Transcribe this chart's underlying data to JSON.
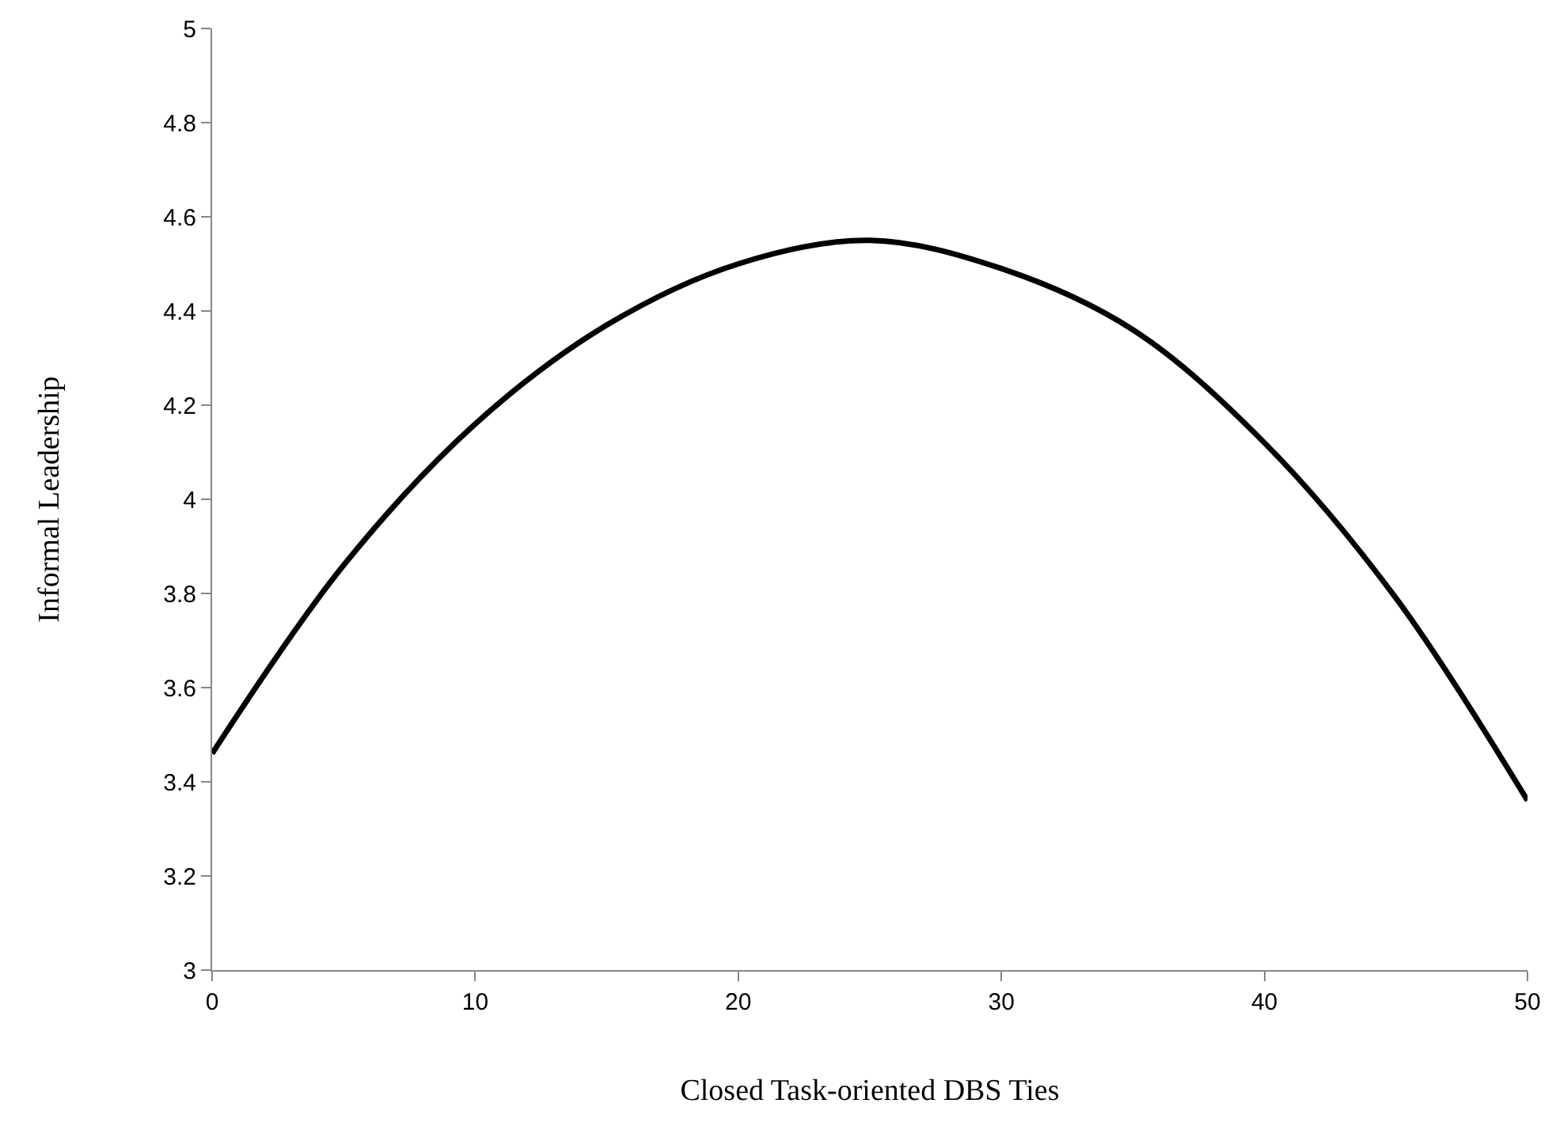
{
  "chart_data": {
    "type": "line",
    "xlabel": "Closed Task-oriented DBS Ties",
    "ylabel": "Informal Leadership",
    "x": [
      0,
      5,
      10,
      15,
      20,
      25,
      30,
      35,
      40,
      45,
      50
    ],
    "series": [
      {
        "color": "#000000",
        "values": [
          3.46,
          3.86,
          4.16,
          4.37,
          4.5,
          4.55,
          4.49,
          4.36,
          4.12,
          3.79,
          3.36
        ]
      }
    ],
    "xlim": [
      0,
      50
    ],
    "xticks": [
      0,
      10,
      20,
      30,
      40,
      50
    ],
    "ylim": [
      3,
      5
    ],
    "yticks": [
      3,
      3.2,
      3.4,
      3.6,
      3.8,
      4,
      4.2,
      4.4,
      4.6,
      4.8,
      5
    ],
    "marker": "none",
    "line_style": "solid"
  }
}
